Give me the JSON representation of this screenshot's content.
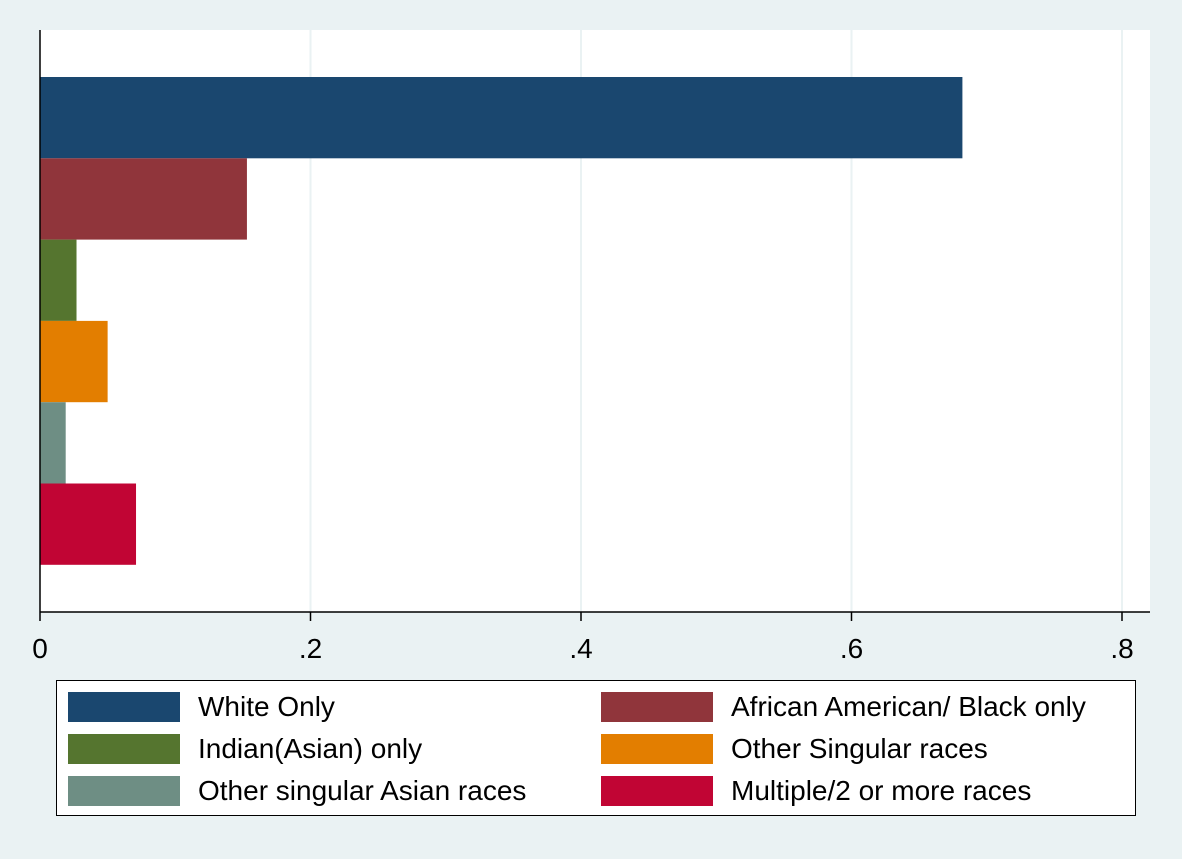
{
  "chart_data": {
    "type": "bar",
    "orientation": "horizontal",
    "categories": [
      "White Only",
      "African American/ Black only",
      "Indian(Asian) only",
      "Other Singular races",
      "Other singular Asian races",
      "Multiple/2 or more races"
    ],
    "values": [
      0.682,
      0.153,
      0.027,
      0.05,
      0.019,
      0.071
    ],
    "colors": [
      "#1a476f",
      "#90353b",
      "#55752f",
      "#e37e00",
      "#6e8e84",
      "#c10534"
    ],
    "xlim": [
      0,
      0.8
    ],
    "xticks": [
      "0",
      ".2",
      ".4",
      ".6",
      ".8"
    ],
    "xtick_values": [
      0,
      0.2,
      0.4,
      0.6,
      0.8
    ],
    "grid": true,
    "legend_position": "bottom",
    "title": "",
    "xlabel": "",
    "ylabel": ""
  }
}
